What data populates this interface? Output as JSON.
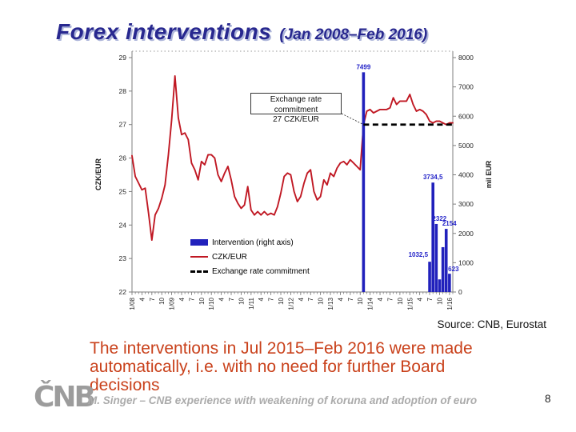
{
  "slide": {
    "title_main": "Forex interventions",
    "title_suffix": "(Jan 2008–Feb 2016)",
    "source": "Source: CNB, Eurostat",
    "body_lines": [
      "The interventions in Jul 2015–Feb 2016 were made",
      "automatically, i.e. with no need for further Board",
      "decisions"
    ],
    "logo_text": "ČNB",
    "footer": "M. Singer – CNB experience with weakening of koruna and adoption of euro",
    "page_number": "8"
  },
  "colors": {
    "title_navy": "#28288F",
    "body_red": "#C9411B",
    "line_red": "#C01823",
    "bar_blue": "#2121BC",
    "bar_label_blue": "#2323C8",
    "footer_gray": "#ABABAB"
  },
  "chart_data": {
    "type": "line+bar",
    "title": "",
    "x_range": [
      "Jan 2008",
      "Feb 2016"
    ],
    "x_tick_labels": [
      "1/08",
      "4",
      "7",
      "10",
      "1/09",
      "4",
      "7",
      "10",
      "1/10",
      "4",
      "7",
      "10",
      "1/11",
      "4",
      "7",
      "10",
      "1/12",
      "4",
      "7",
      "10",
      "1/13",
      "4",
      "7",
      "10",
      "1/14",
      "4",
      "7",
      "10",
      "1/15",
      "4",
      "7",
      "10",
      "1/16"
    ],
    "left_axis": {
      "label": "CZK/EUR",
      "min": 22,
      "max": 29,
      "step": 1,
      "tick_labels": [
        "22",
        "23",
        "24",
        "25",
        "26",
        "27",
        "28",
        "29"
      ]
    },
    "right_axis": {
      "label": "mil EUR",
      "min": 0,
      "max": 8000,
      "step": 1000,
      "tick_labels": [
        "0",
        "1000",
        "2000",
        "3000",
        "4000",
        "5000",
        "6000",
        "7000",
        "8000"
      ]
    },
    "series": [
      {
        "name": "CZK/EUR",
        "type": "line",
        "color": "#C01823",
        "monthly_values": [
          26.07,
          25.45,
          25.25,
          25.05,
          25.1,
          24.35,
          23.55,
          24.3,
          24.5,
          24.8,
          25.2,
          26.1,
          27.15,
          28.45,
          27.2,
          26.7,
          26.75,
          26.55,
          25.85,
          25.65,
          25.35,
          25.9,
          25.8,
          26.1,
          26.1,
          26.0,
          25.5,
          25.3,
          25.55,
          25.75,
          25.35,
          24.85,
          24.65,
          24.5,
          24.6,
          25.15,
          24.45,
          24.3,
          24.4,
          24.3,
          24.4,
          24.3,
          24.35,
          24.3,
          24.55,
          24.95,
          25.45,
          25.55,
          25.5,
          25.0,
          24.7,
          24.85,
          25.25,
          25.55,
          25.65,
          25.0,
          24.75,
          24.85,
          25.35,
          25.2,
          25.55,
          25.45,
          25.7,
          25.85,
          25.9,
          25.8,
          25.95,
          25.85,
          25.75,
          25.65,
          27.0,
          27.4,
          27.45,
          27.35,
          27.4,
          27.45,
          27.45,
          27.45,
          27.5,
          27.8,
          27.6,
          27.7,
          27.7,
          27.7,
          27.9,
          27.6,
          27.4,
          27.45,
          27.4,
          27.3,
          27.1,
          27.05,
          27.1,
          27.1,
          27.05,
          27.0,
          27.05,
          27.05
        ]
      },
      {
        "name": "Intervention (right axis)",
        "type": "bar",
        "axis": "right",
        "color": "#2121BC",
        "points": [
          {
            "month_index": 70,
            "value": 7499,
            "label": "7499",
            "label_placement": "top"
          },
          {
            "month_index": 90,
            "value": 1032.5,
            "label": "1032,5",
            "label_placement": "left"
          },
          {
            "month_index": 91,
            "value": 3734.5,
            "label": "3734,5",
            "label_placement": "top"
          },
          {
            "month_index": 92,
            "value": 2322,
            "label": "2322",
            "label_placement": "top-right"
          },
          {
            "month_index": 93,
            "value": 430,
            "label": "",
            "label_placement": "none"
          },
          {
            "month_index": 94,
            "value": 1530,
            "label": "",
            "label_placement": "none"
          },
          {
            "month_index": 95,
            "value": 2154,
            "label": "2154",
            "label_placement": "top-right"
          },
          {
            "month_index": 96,
            "value": 623,
            "label": "623",
            "label_placement": "right"
          }
        ]
      },
      {
        "name": "Exchange rate commitment",
        "type": "dashed-line",
        "color": "#000000",
        "value": 27,
        "from_month_index": 70,
        "to_month_index": 97
      }
    ],
    "annotation": {
      "line1": "Exchange rate commitment",
      "line2": "27 CZK/EUR"
    },
    "legend": [
      {
        "label": "Intervention (right axis)",
        "swatch": "bar-blue"
      },
      {
        "label": "CZK/EUR",
        "swatch": "line-red"
      },
      {
        "label": "Exchange rate commitment",
        "swatch": "dash-black"
      }
    ],
    "grid": "off",
    "legend_position": "inside-bottom-left"
  }
}
